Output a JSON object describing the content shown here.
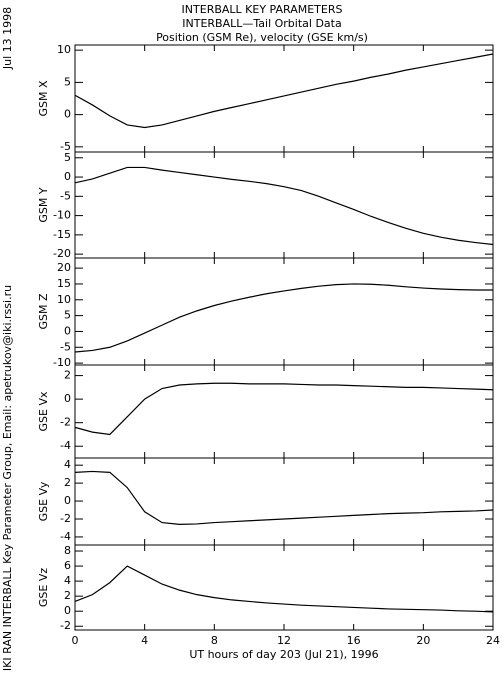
{
  "title": [
    "INTERBALL KEY PARAMETERS",
    "INTERBALL—Tail Orbital Data",
    "Position (GSM Re), velocity (GSE km/s)"
  ],
  "date_stamp": "Jul 13 1998",
  "credit": "IKI RAN INTERBALL Key Parameter Group, Email: apetrukov@iki.rssi.ru",
  "x_label": "UT hours of day 203 (Jul 21), 1996",
  "chart_data": [
    {
      "type": "line",
      "y_label": "GSM X",
      "color": "#000000",
      "x": [
        0,
        1,
        2,
        3,
        4,
        5,
        6,
        7,
        8,
        9,
        10,
        11,
        12,
        13,
        14,
        15,
        16,
        17,
        18,
        19,
        20,
        21,
        22,
        23,
        24
      ],
      "values": [
        3,
        1.5,
        -0.2,
        -1.6,
        -2,
        -1.6,
        -0.9,
        -0.2,
        0.5,
        1.1,
        1.7,
        2.3,
        2.9,
        3.5,
        4.1,
        4.7,
        5.2,
        5.8,
        6.3,
        6.9,
        7.4,
        7.9,
        8.4,
        8.9,
        9.4
      ],
      "xlim": [
        0,
        24
      ],
      "xticks": [
        0,
        4,
        8,
        12,
        16,
        20,
        24
      ],
      "ylim": [
        -5.8,
        10.8
      ],
      "yticks": [
        -5,
        0,
        5,
        10
      ]
    },
    {
      "type": "line",
      "y_label": "GSM Y",
      "color": "#000000",
      "x": [
        0,
        1,
        2,
        3,
        4,
        5,
        6,
        7,
        8,
        9,
        10,
        11,
        12,
        13,
        14,
        15,
        16,
        17,
        18,
        19,
        20,
        21,
        22,
        23,
        24
      ],
      "values": [
        -1.5,
        -0.5,
        1,
        2.5,
        2.5,
        1.8,
        1.2,
        0.6,
        0,
        -0.6,
        -1.1,
        -1.7,
        -2.5,
        -3.5,
        -5,
        -6.7,
        -8.4,
        -10.2,
        -11.8,
        -13.3,
        -14.6,
        -15.6,
        -16.4,
        -17,
        -17.5
      ],
      "xlim": [
        0,
        24
      ],
      "xticks": [
        0,
        4,
        8,
        12,
        16,
        20,
        24
      ],
      "ylim": [
        -21,
        6.5
      ],
      "yticks": [
        -20,
        -15,
        -10,
        -5,
        0,
        5
      ]
    },
    {
      "type": "line",
      "y_label": "GSM Z",
      "color": "#000000",
      "x": [
        0,
        1,
        2,
        3,
        4,
        5,
        6,
        7,
        8,
        9,
        10,
        11,
        12,
        13,
        14,
        15,
        16,
        17,
        18,
        19,
        20,
        21,
        22,
        23,
        24
      ],
      "values": [
        -6.5,
        -6,
        -5,
        -3,
        -0.5,
        2,
        4.5,
        6.5,
        8.2,
        9.6,
        10.8,
        11.9,
        12.8,
        13.6,
        14.3,
        14.8,
        15,
        14.9,
        14.6,
        14.1,
        13.7,
        13.4,
        13.2,
        13.1,
        13.1
      ],
      "xlim": [
        0,
        24
      ],
      "xticks": [
        0,
        4,
        8,
        12,
        16,
        20,
        24
      ],
      "ylim": [
        -10.6,
        23.2
      ],
      "yticks": [
        -10,
        -5,
        0,
        5,
        10,
        15,
        20
      ]
    },
    {
      "type": "line",
      "y_label": "GSE Vx",
      "color": "#000000",
      "x": [
        0,
        1,
        2,
        3,
        4,
        5,
        6,
        7,
        8,
        9,
        10,
        11,
        12,
        13,
        14,
        15,
        16,
        17,
        18,
        19,
        20,
        21,
        22,
        23,
        24
      ],
      "values": [
        -2.4,
        -2.8,
        -3,
        -1.5,
        0,
        0.9,
        1.2,
        1.3,
        1.35,
        1.35,
        1.3,
        1.3,
        1.3,
        1.25,
        1.2,
        1.2,
        1.15,
        1.1,
        1.05,
        1,
        1,
        0.95,
        0.9,
        0.85,
        0.8
      ],
      "xlim": [
        0,
        24
      ],
      "xticks": [
        0,
        4,
        8,
        12,
        16,
        20,
        24
      ],
      "ylim": [
        -5,
        2.9
      ],
      "yticks": [
        -4,
        -2,
        0,
        2
      ]
    },
    {
      "type": "line",
      "y_label": "GSE Vy",
      "color": "#000000",
      "x": [
        0,
        1,
        2,
        3,
        4,
        5,
        6,
        7,
        8,
        9,
        10,
        11,
        12,
        13,
        14,
        15,
        16,
        17,
        18,
        19,
        20,
        21,
        22,
        23,
        24
      ],
      "values": [
        3.2,
        3.3,
        3.2,
        1.5,
        -1.2,
        -2.4,
        -2.6,
        -2.55,
        -2.4,
        -2.3,
        -2.2,
        -2.1,
        -2,
        -1.9,
        -1.8,
        -1.7,
        -1.6,
        -1.5,
        -1.4,
        -1.35,
        -1.3,
        -1.2,
        -1.15,
        -1.1,
        -1
      ],
      "xlim": [
        0,
        24
      ],
      "xticks": [
        0,
        4,
        8,
        12,
        16,
        20,
        24
      ],
      "ylim": [
        -4.9,
        4.8
      ],
      "yticks": [
        -4,
        -2,
        0,
        2,
        4
      ]
    },
    {
      "type": "line",
      "y_label": "GSE Vz",
      "color": "#000000",
      "x": [
        0,
        1,
        2,
        3,
        4,
        5,
        6,
        7,
        8,
        9,
        10,
        11,
        12,
        13,
        14,
        15,
        16,
        17,
        18,
        19,
        20,
        21,
        22,
        23,
        24
      ],
      "values": [
        1.3,
        2.2,
        3.8,
        6,
        4.8,
        3.6,
        2.8,
        2.2,
        1.8,
        1.5,
        1.3,
        1.1,
        0.95,
        0.8,
        0.7,
        0.6,
        0.5,
        0.4,
        0.3,
        0.25,
        0.2,
        0.15,
        0.05,
        0,
        -0.1
      ],
      "xlim": [
        0,
        24
      ],
      "xticks": [
        0,
        4,
        8,
        12,
        16,
        20,
        24
      ],
      "ylim": [
        -2.5,
        8.8
      ],
      "yticks": [
        -2,
        0,
        2,
        4,
        6,
        8
      ]
    }
  ]
}
